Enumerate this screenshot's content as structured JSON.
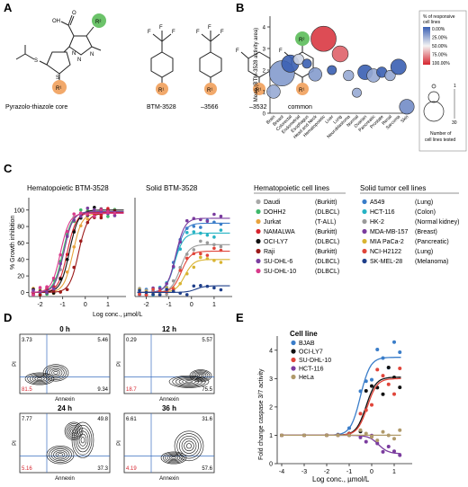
{
  "panelA": {
    "label": "A",
    "names": [
      "Pyrazolo-thiazole core",
      "BTM-3528",
      "–3566",
      "–3532",
      "common"
    ],
    "atoms": {
      "oh": "OH",
      "o": "O",
      "s": "S",
      "n": "N",
      "f": "F",
      "r1": "R¹",
      "r2": "R²"
    },
    "colors": {
      "r1": "#f2a96b",
      "r2": "#6cc36a"
    }
  },
  "panelB": {
    "label": "B",
    "legend": {
      "title": "% of responsive\ncell lines",
      "ticks": [
        "0.00%",
        "25.00%",
        "50.00%",
        "75.00%",
        "100.00%"
      ],
      "size_top": "1",
      "size_bottom": "30",
      "size_caption": "Number of\ncell lines tested"
    }
  },
  "panelC": {
    "label": "C",
    "titles": [
      "Hematopoietic BTM-3528",
      "Solid BTM-3528"
    ],
    "heme_header": "Hematopoietic cell lines",
    "solid_header": "Solid tumor cell lines",
    "heme_lines": [
      {
        "name": "Daudi",
        "type": "(Burkitt)",
        "color": "#a8a8a8"
      },
      {
        "name": "DOHH2",
        "type": "(DLBCL)",
        "color": "#3fb86b"
      },
      {
        "name": "Jurkat",
        "type": "(T-ALL)",
        "color": "#e8a33d"
      },
      {
        "name": "NAMALWA",
        "type": "(Burkitt)",
        "color": "#d6242e"
      },
      {
        "name": "OCI-LY7",
        "type": "(DLBCL)",
        "color": "#111111"
      },
      {
        "name": "Raji",
        "type": "(Burkitt)",
        "color": "#9c1a1a"
      },
      {
        "name": "SU-DHL-6",
        "type": "(DLBCL)",
        "color": "#7b3fa0"
      },
      {
        "name": "SU-DHL-10",
        "type": "(DLBCL)",
        "color": "#d83a8b"
      }
    ],
    "solid_lines": [
      {
        "name": "A549",
        "type": "(Lung)",
        "color": "#3a7dc9"
      },
      {
        "name": "HCT-116",
        "type": "(Colon)",
        "color": "#26b3c4"
      },
      {
        "name": "HK-2",
        "type": "(Normal kidney)",
        "color": "#9a9a9a"
      },
      {
        "name": "MDA-MB-157",
        "type": "(Breast)",
        "color": "#7a3b9e"
      },
      {
        "name": "MIA PaCa-2",
        "type": "(Pancreatic)",
        "color": "#d9b431"
      },
      {
        "name": "NCI-H2122",
        "type": "(Lung)",
        "color": "#e0453a"
      },
      {
        "name": "SK-MEL-28",
        "type": "(Melanoma)",
        "color": "#1f3f8a"
      }
    ]
  },
  "panelD": {
    "label": "D",
    "plots": [
      {
        "title": "0 h",
        "ul": "3.73",
        "ur": "5.46",
        "ll": "81.5",
        "lr": "9.34"
      },
      {
        "title": "12 h",
        "ul": "0.29",
        "ur": "5.57",
        "ll": "18.7",
        "lr": "75.5"
      },
      {
        "title": "24 h",
        "ul": "7.77",
        "ur": "49.8",
        "ll": "5.16",
        "lr": "37.3"
      },
      {
        "title": "36 h",
        "ul": "6.61",
        "ur": "31.6",
        "ll": "4.19",
        "lr": "57.6"
      }
    ],
    "xlabel": "Annexin",
    "ylabel": "PI"
  },
  "panelE": {
    "label": "E",
    "legend_title": "Cell line",
    "lines": [
      {
        "name": "BJAB",
        "color": "#3a7dc9"
      },
      {
        "name": "OCI-LY7",
        "color": "#111111"
      },
      {
        "name": "SU-DHL-10",
        "color": "#e0453a"
      },
      {
        "name": "HCT-116",
        "color": "#7a3b9e"
      },
      {
        "name": "HeLa",
        "color": "#b09a6a"
      }
    ]
  },
  "chart_data": [
    {
      "type": "scatter",
      "panel": "B",
      "xlabel": "",
      "ylabel": "Mean (BTM-3528 activity area)",
      "ylim": [
        0,
        4.5
      ],
      "yticks": [
        0,
        1,
        2,
        3,
        4
      ],
      "categories": [
        "Brain",
        "Breast",
        "Colorectal",
        "Endometrial",
        "Esophagus",
        "Head and Neck",
        "Hematopoietic",
        "Liver",
        "Lung",
        "Neuroblastoma",
        "Normal",
        "Ovarian",
        "Pancreatic",
        "Prostate",
        "Renal",
        "Sarcoma",
        "Skin"
      ],
      "values": [
        1.0,
        1.85,
        2.3,
        2.5,
        2.3,
        1.8,
        3.45,
        2.0,
        2.75,
        1.75,
        0.95,
        1.9,
        1.75,
        1.9,
        1.75,
        2.15,
        0.3
      ],
      "n_tested": [
        6,
        30,
        12,
        3,
        2,
        6,
        30,
        2,
        10,
        3,
        2,
        8,
        6,
        3,
        3,
        9,
        8
      ],
      "pct_responsive": [
        25,
        20,
        0,
        40,
        0,
        20,
        95,
        0,
        85,
        25,
        25,
        0,
        25,
        0,
        25,
        0,
        15
      ],
      "legend_placement": "right"
    },
    {
      "type": "line",
      "panel": "C-hematopoietic",
      "title": "Hematopoietic BTM-3528",
      "xlabel": "Log conc., µmol/L",
      "ylabel": "% Growth inhibition",
      "xlim": [
        -2.5,
        1.8
      ],
      "ylim": [
        -5,
        115
      ],
      "xticks": [
        -2,
        -1,
        0,
        1
      ],
      "yticks": [
        0,
        20,
        40,
        60,
        80,
        100
      ],
      "x": [
        -2.3,
        -2.0,
        -1.7,
        -1.4,
        -1.1,
        -0.8,
        -0.5,
        -0.2,
        0.1,
        0.4,
        0.7,
        1.0,
        1.3
      ],
      "series": [
        {
          "name": "Daudi",
          "ic50": -0.95,
          "top": 98
        },
        {
          "name": "DOHH2",
          "ic50": -1.0,
          "top": 97
        },
        {
          "name": "Jurkat",
          "ic50": -0.55,
          "top": 96
        },
        {
          "name": "NAMALWA",
          "ic50": -0.8,
          "top": 97
        },
        {
          "name": "OCI-LY7",
          "ic50": -0.7,
          "top": 100
        },
        {
          "name": "Raji",
          "ic50": -0.3,
          "top": 96
        },
        {
          "name": "SU-DHL-6",
          "ic50": -0.95,
          "top": 98
        },
        {
          "name": "SU-DHL-10",
          "ic50": -1.1,
          "top": 96
        }
      ]
    },
    {
      "type": "line",
      "panel": "C-solid",
      "title": "Solid BTM-3528",
      "xlabel": "Log conc., µmol/L",
      "xlim": [
        -2.5,
        1.8
      ],
      "ylim": [
        -5,
        115
      ],
      "xticks": [
        -2,
        -1,
        0,
        1
      ],
      "x": [
        -2.3,
        -2.0,
        -1.7,
        -1.4,
        -1.1,
        -0.8,
        -0.5,
        -0.2,
        0.1,
        0.4,
        0.7,
        1.0,
        1.3
      ],
      "series": [
        {
          "name": "A549",
          "ic50": -0.7,
          "top": 84
        },
        {
          "name": "HCT-116",
          "ic50": -0.75,
          "top": 72
        },
        {
          "name": "HK-2",
          "ic50": -0.5,
          "top": 58
        },
        {
          "name": "MDA-MB-157",
          "ic50": -0.7,
          "top": 90
        },
        {
          "name": "MIA PaCa-2",
          "ic50": -0.3,
          "top": 40
        },
        {
          "name": "NCI-H2122",
          "ic50": -0.45,
          "top": 50
        },
        {
          "name": "SK-MEL-28",
          "ic50": 0.2,
          "top": 8
        }
      ]
    },
    {
      "type": "line",
      "panel": "E",
      "xlabel": "Log conc., µmol/L",
      "ylabel": "Fold change caspase 3/7 activity",
      "xlim": [
        -4.2,
        1.8
      ],
      "ylim": [
        0,
        4.5
      ],
      "xticks": [
        -4,
        -3,
        -2,
        -1,
        0,
        1
      ],
      "yticks": [
        0,
        1,
        2,
        3,
        4
      ],
      "x": [
        -4,
        -3,
        -2,
        -1.5,
        -1,
        -0.5,
        -0.25,
        0,
        0.25,
        0.5,
        0.75,
        1,
        1.25
      ],
      "series": [
        {
          "name": "BJAB",
          "bottom": 1.0,
          "top": 3.75,
          "ec50": -0.5
        },
        {
          "name": "OCI-LY7",
          "bottom": 1.0,
          "top": 3.05,
          "ec50": -0.25
        },
        {
          "name": "SU-DHL-10",
          "bottom": 1.0,
          "top": 3.0,
          "ec50": -0.2
        },
        {
          "name": "HCT-116",
          "bottom": 1.0,
          "top": 0.35,
          "ec50": 0.3
        },
        {
          "name": "HeLa",
          "bottom": 1.0,
          "top": 1.0,
          "ec50": 0.0
        }
      ]
    }
  ]
}
